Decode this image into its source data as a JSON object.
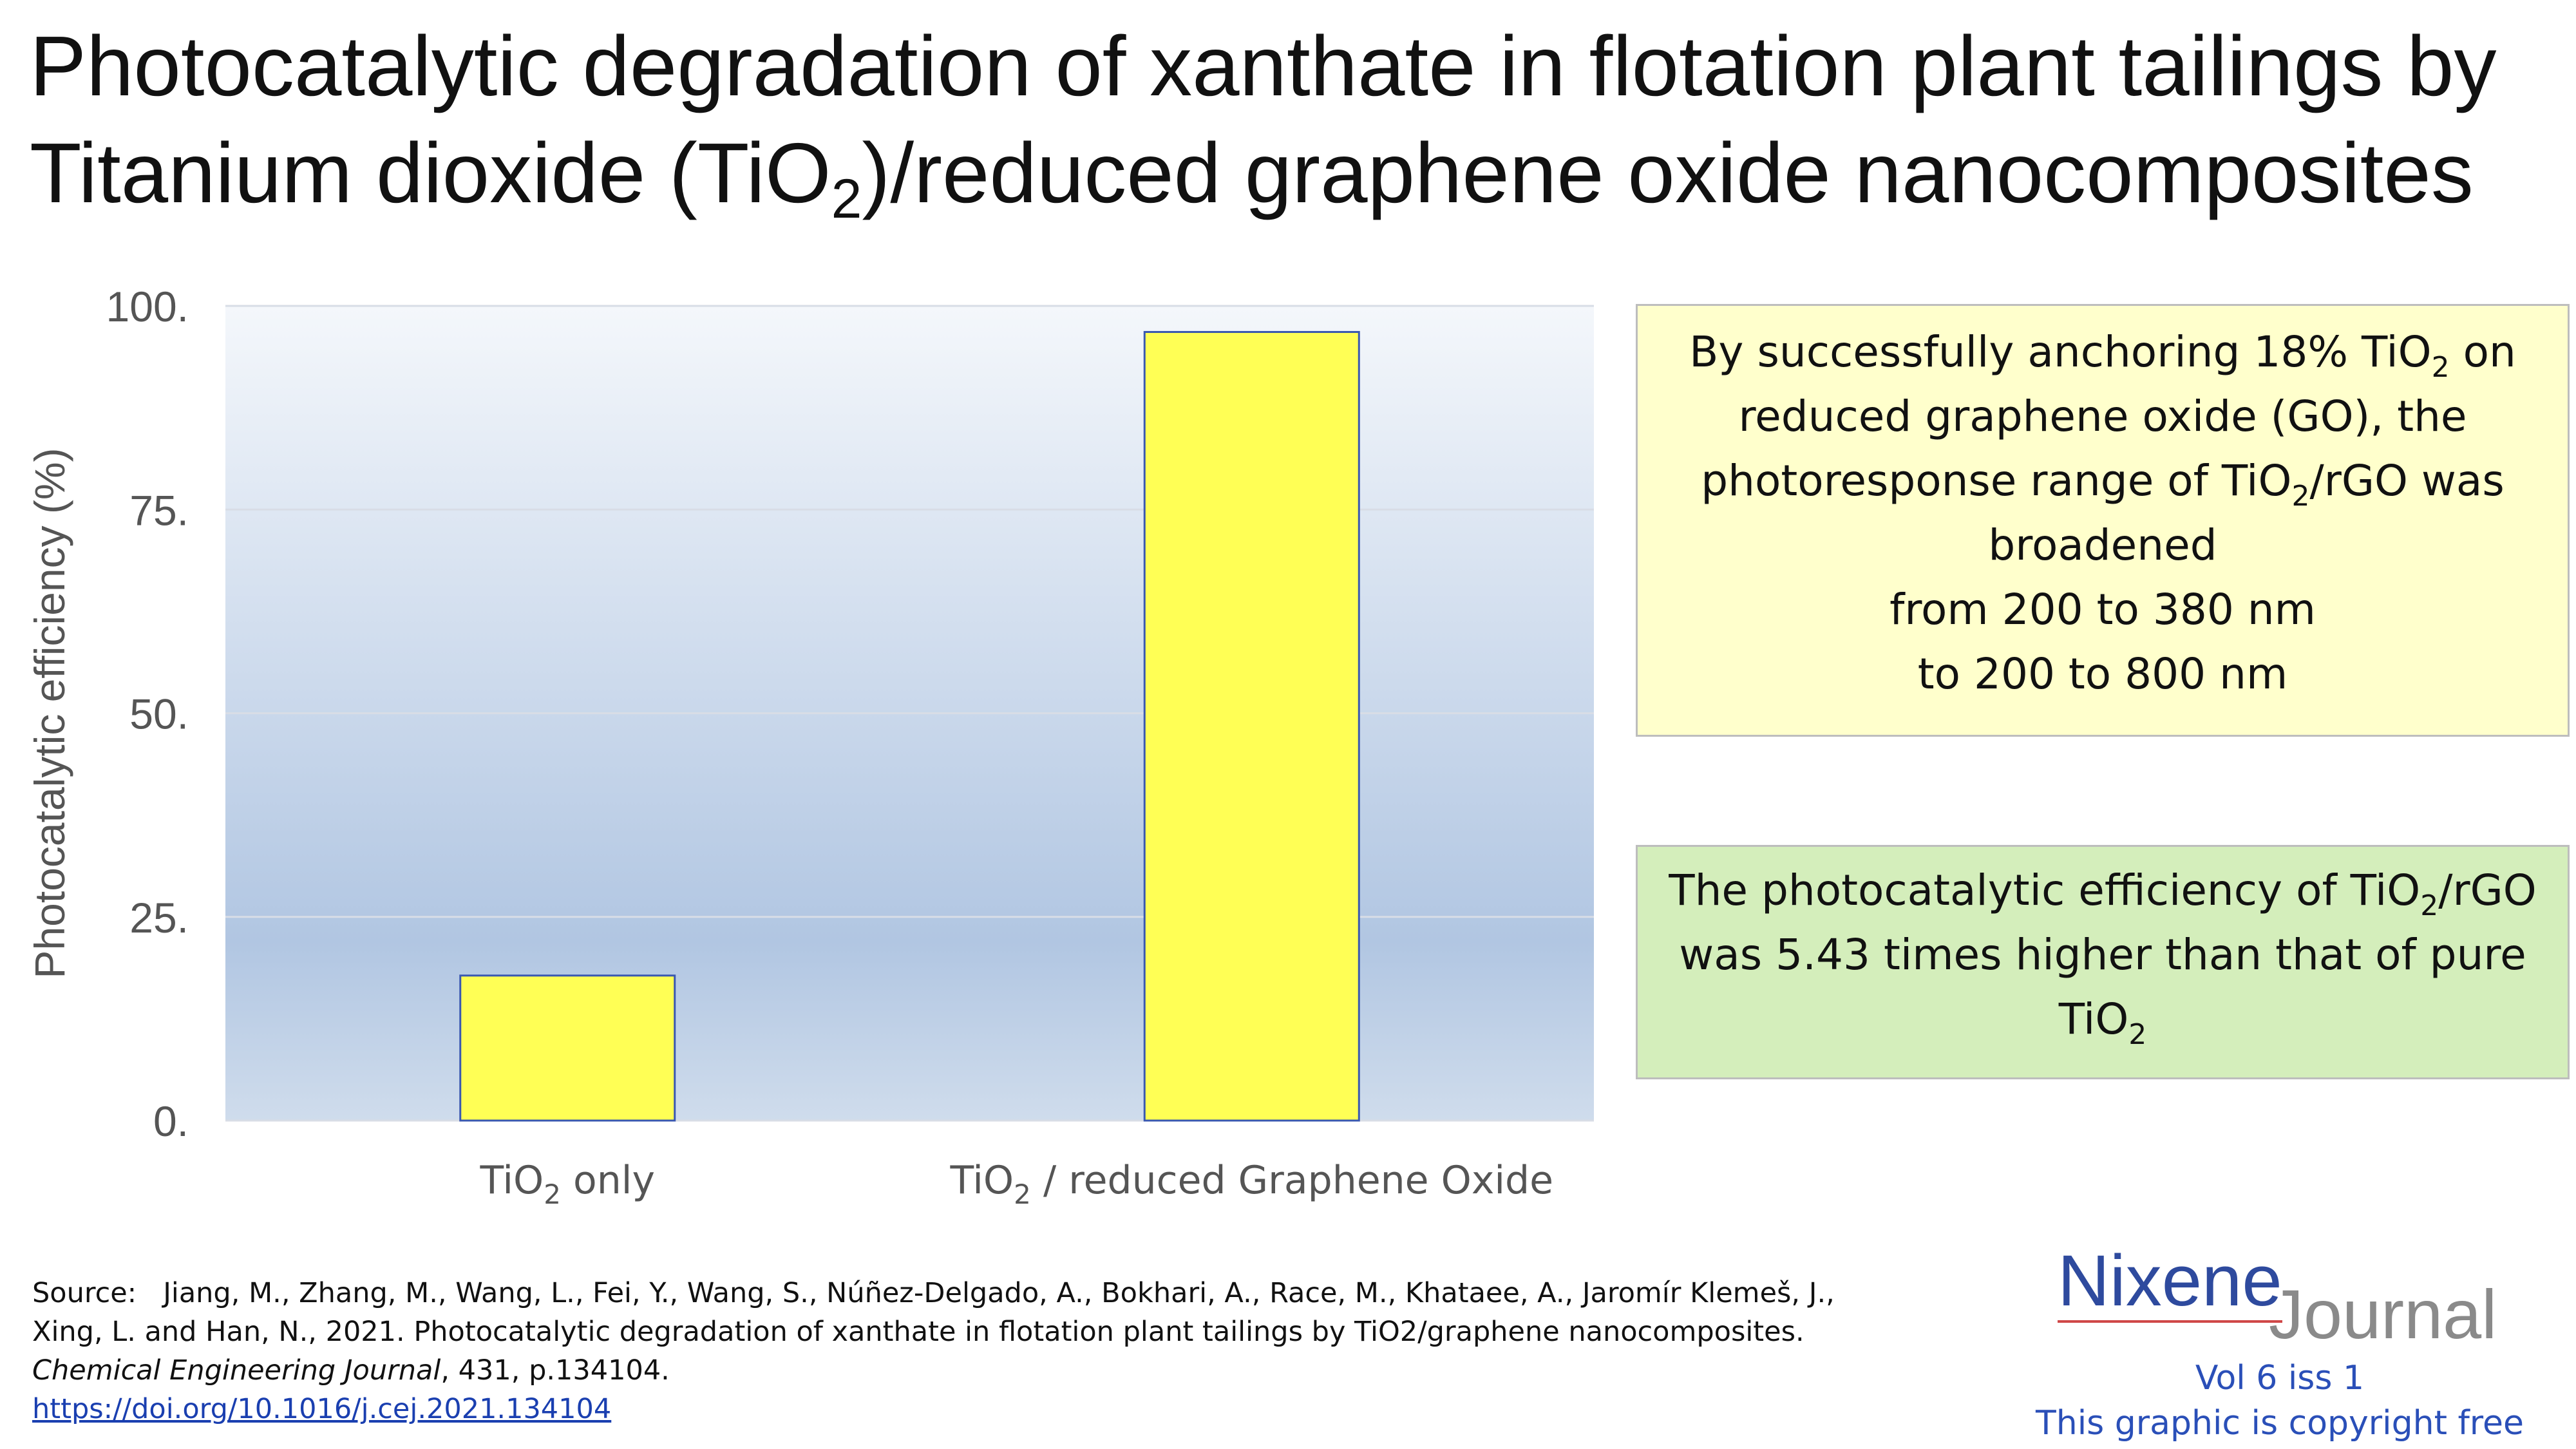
{
  "title": {
    "line1": "Photocatalytic degradation of xanthate in flotation plant tailings by",
    "line2_pre": "Titanium dioxide (TiO",
    "line2_sub": "2",
    "line2_post": ")/reduced graphene oxide nanocomposites"
  },
  "chart_data": {
    "type": "bar",
    "categories": [
      {
        "pre": "TiO",
        "sub": "2",
        "post": " only"
      },
      {
        "pre": "TiO",
        "sub": "2",
        "post": " / reduced Graphene Oxide"
      }
    ],
    "values": [
      17.8,
      96.8
    ],
    "ylabel": "Photocatalytic efficiency (%)",
    "ylim": [
      0,
      100
    ],
    "yticks": [
      0,
      25,
      50,
      75,
      100
    ],
    "ytick_labels": [
      "0.",
      "25.",
      "50.",
      "75.",
      "100."
    ],
    "grid": true,
    "colors": {
      "bar_fill": "#ffff55",
      "bar_stroke": "#3a58b0",
      "plot_bg_top": "#f4f7fb",
      "plot_bg_bottom": "#a9c0df",
      "gridline": "#d8dde6",
      "axis_text": "#555555"
    }
  },
  "notes": {
    "note1": {
      "l1_pre": "By successfully anchoring 18% TiO",
      "l1_sub": "2",
      "l1_post": " on",
      "l2": "reduced graphene oxide (GO), the",
      "l3_pre": "photoresponse range of TiO",
      "l3_sub": "2",
      "l3_post": "/rGO was",
      "l4": "broadened",
      "l5": "from 200 to 380 nm",
      "l6": "to 200 to 800 nm"
    },
    "note2": {
      "l1_pre": "The photocatalytic efficiency of TiO",
      "l1_sub": "2",
      "l1_post": "/rGO",
      "l2": "was 5.43 times higher than that of pure",
      "l3_pre": "TiO",
      "l3_sub": "2"
    }
  },
  "source": {
    "label": "Source:",
    "text1": "Jiang, M., Zhang, M., Wang, L., Fei, Y., Wang, S., Núñez-Delgado, A., Bokhari, A., Race, M., Khataee, A., Jaromír Klemeš, J., Xing, L. and Han, N., 2021. Photocatalytic degradation of xanthate in flotation plant tailings by TiO2/graphene nanocomposites. ",
    "journal": "Chemical Engineering Journal",
    "text2": ", 431, p.134104.",
    "link": "https://doi.org/10.1016/j.cej.2021.134104"
  },
  "logo": {
    "nixene": "Nixene",
    "journal": "Journal"
  },
  "footer": {
    "vol": "Vol 6 iss 1",
    "copyright": "This graphic is copyright free"
  }
}
